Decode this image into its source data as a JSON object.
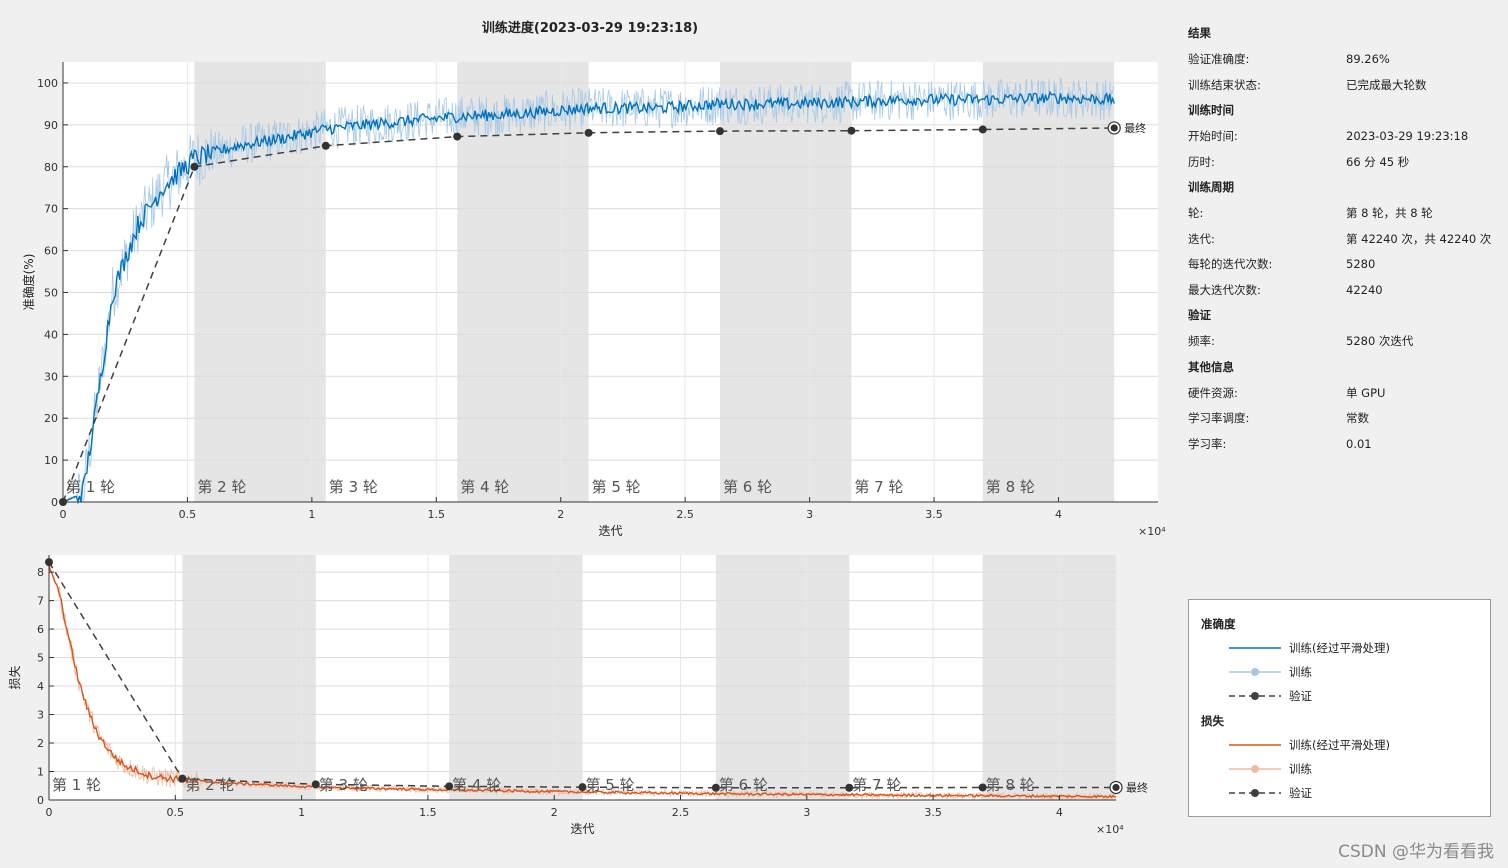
{
  "window": {
    "title": "训练进度(2023-03-29 19:23:18)"
  },
  "info_panel": {
    "sections": [
      {
        "header": "结果",
        "rows": [
          {
            "key": "验证准确度:",
            "value": "89.26%"
          },
          {
            "key": "训练结束状态:",
            "value": "已完成最大轮数"
          }
        ]
      },
      {
        "header": "训练时间",
        "rows": [
          {
            "key": "开始时间:",
            "value": "2023-03-29 19:23:18"
          },
          {
            "key": "历时:",
            "value": "66 分 45 秒"
          }
        ]
      },
      {
        "header": "训练周期",
        "rows": [
          {
            "key": "轮:",
            "value": "第 8 轮，共 8 轮"
          },
          {
            "key": "迭代:",
            "value": "第 42240 次，共 42240 次"
          },
          {
            "key": "每轮的迭代次数:",
            "value": "5280"
          },
          {
            "key": "最大迭代次数:",
            "value": "42240"
          }
        ]
      },
      {
        "header": "验证",
        "rows": [
          {
            "key": "频率:",
            "value": "5280 次迭代"
          }
        ]
      },
      {
        "header": "其他信息",
        "rows": [
          {
            "key": "硬件资源:",
            "value": "单 GPU"
          },
          {
            "key": "学习率调度:",
            "value": "常数"
          },
          {
            "key": "学习率:",
            "value": "0.01"
          }
        ]
      }
    ]
  },
  "legend": {
    "accuracy_header": "准确度",
    "loss_header": "损失",
    "smoothed_label": "训练(经过平滑处理)",
    "train_label": "训练",
    "val_label": "验证"
  },
  "watermark": "CSDN @华为看看我",
  "colors": {
    "acc_smoothed": "#0072bd",
    "acc_raw": "#a6c8e6",
    "loss_smoothed": "#d95319",
    "loss_raw": "#f0b9a3",
    "validation": "#404040",
    "epoch_band": "#e5e5e5"
  },
  "chart_data": [
    {
      "type": "line",
      "name": "accuracy",
      "xlabel": "迭代",
      "ylabel": "准确度(%)",
      "x_exponent_label": "×10⁴",
      "xlim": [
        0,
        44000
      ],
      "ylim": [
        0,
        105
      ],
      "xticks": [
        0,
        5000,
        10000,
        15000,
        20000,
        25000,
        30000,
        35000,
        40000
      ],
      "xtick_labels": [
        "0",
        "0.5",
        "1",
        "1.5",
        "2",
        "2.5",
        "3",
        "3.5",
        "4"
      ],
      "yticks": [
        0,
        10,
        20,
        30,
        40,
        50,
        60,
        70,
        80,
        90,
        100
      ],
      "epoch_labels": [
        "第 1 轮",
        "第 2 轮",
        "第 3 轮",
        "第 4 轮",
        "第 5 轮",
        "第 6 轮",
        "第 7 轮",
        "第 8 轮"
      ],
      "epoch_boundaries": [
        0,
        5280,
        10560,
        15840,
        21120,
        26400,
        31680,
        36960,
        42240
      ],
      "final_label": "最终",
      "smoothed_curve": {
        "x": [
          0,
          800,
          1400,
          2000,
          3000,
          4000,
          5280,
          7000,
          9000,
          10560,
          13000,
          15840,
          18000,
          21120,
          24000,
          26400,
          29000,
          31680,
          34000,
          36960,
          40000,
          42240
        ],
        "y": [
          0,
          2,
          25,
          50,
          66,
          75,
          82,
          85,
          87,
          89,
          90.5,
          92,
          92.5,
          94,
          94,
          95,
          95,
          95.5,
          96,
          96,
          96.5,
          96
        ]
      },
      "validation": {
        "x": [
          0,
          5280,
          10560,
          15840,
          21120,
          26400,
          31680,
          36960,
          42240
        ],
        "y": [
          0,
          80,
          85,
          87.2,
          88.1,
          88.5,
          88.6,
          88.9,
          89.26
        ]
      }
    },
    {
      "type": "line",
      "name": "loss",
      "xlabel": "迭代",
      "ylabel": "损失",
      "x_exponent_label": "×10⁴",
      "xlim": [
        0,
        42240
      ],
      "ylim": [
        0,
        8.6
      ],
      "xticks": [
        0,
        5000,
        10000,
        15000,
        20000,
        25000,
        30000,
        35000,
        40000
      ],
      "xtick_labels": [
        "0",
        "0.5",
        "1",
        "1.5",
        "2",
        "2.5",
        "3",
        "3.5",
        "4"
      ],
      "yticks": [
        0,
        1,
        2,
        3,
        4,
        5,
        6,
        7,
        8
      ],
      "epoch_labels": [
        "第 1 轮",
        "第 2 轮",
        "第 3 轮",
        "第 4 轮",
        "第 5 轮",
        "第 6 轮",
        "第 7 轮",
        "第 8 轮"
      ],
      "epoch_boundaries": [
        0,
        5280,
        10560,
        15840,
        21120,
        26400,
        31680,
        36960,
        42240
      ],
      "final_label": "最终",
      "smoothed_curve": {
        "x": [
          0,
          400,
          800,
          1200,
          1600,
          2000,
          2500,
          3000,
          4000,
          5280,
          7000,
          10560,
          15840,
          21120,
          26400,
          31680,
          36960,
          42240
        ],
        "y": [
          8.2,
          7.3,
          5.6,
          4.1,
          3.0,
          2.2,
          1.6,
          1.2,
          0.85,
          0.7,
          0.6,
          0.45,
          0.35,
          0.28,
          0.22,
          0.18,
          0.15,
          0.12
        ]
      },
      "validation": {
        "x": [
          0,
          5280,
          10560,
          15840,
          21120,
          26400,
          31680,
          36960,
          42240
        ],
        "y": [
          8.35,
          0.75,
          0.55,
          0.48,
          0.45,
          0.43,
          0.43,
          0.44,
          0.44
        ]
      }
    }
  ]
}
